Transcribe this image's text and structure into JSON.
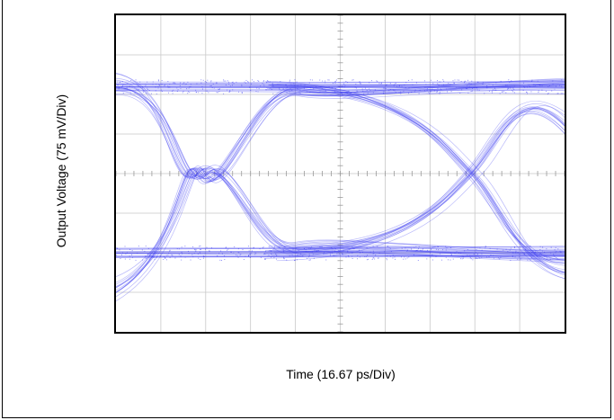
{
  "chart_data": {
    "type": "eye-diagram",
    "title": "",
    "xlabel": "Time (16.67 ps/Div)",
    "ylabel": "Output Voltage (75 mV/Div)",
    "x_divisions": 10,
    "y_divisions": 8,
    "x_units_per_div": "16.67 ps",
    "y_units_per_div": "75 mV",
    "grid": true,
    "trace_color": "#3a3af0",
    "crossings_div": [
      2,
      8
    ],
    "high_level_div": 2.2,
    "low_level_div": -2.0,
    "series": []
  },
  "colors": {
    "trace": "#3a3af0",
    "grid": "#c8c8c8",
    "border": "#000000"
  }
}
